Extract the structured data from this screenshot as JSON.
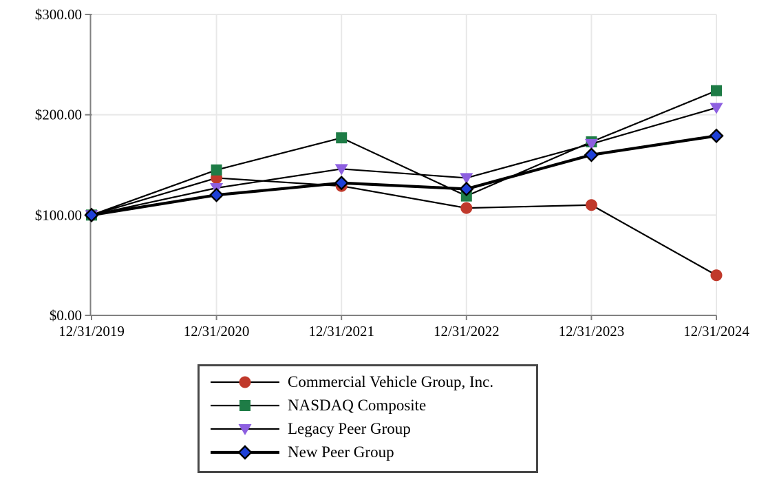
{
  "chart_data": {
    "type": "line",
    "title": "",
    "xlabel": "",
    "ylabel": "",
    "categories": [
      "12/31/2019",
      "12/31/2020",
      "12/31/2021",
      "12/31/2022",
      "12/31/2023",
      "12/31/2024"
    ],
    "series": [
      {
        "name": "Commercial Vehicle Group, Inc.",
        "marker": "circle",
        "marker_color": "#c0392b",
        "line_color": "#000000",
        "line_width": 2.2,
        "values": [
          100,
          137,
          129,
          107,
          110,
          40
        ]
      },
      {
        "name": "NASDAQ Composite",
        "marker": "square",
        "marker_color": "#1e7c46",
        "line_color": "#000000",
        "line_width": 2.2,
        "values": [
          100,
          145,
          177,
          119,
          173,
          224
        ]
      },
      {
        "name": "Legacy Peer Group",
        "marker": "triangle-down",
        "marker_color": "#8d5fe0",
        "line_color": "#000000",
        "line_width": 2.2,
        "values": [
          100,
          127,
          146,
          137,
          171,
          207
        ]
      },
      {
        "name": "New Peer Group",
        "marker": "diamond",
        "marker_color": "#1e40d8",
        "line_color": "#000000",
        "line_width": 4.2,
        "values": [
          100,
          120,
          132,
          126,
          160,
          179
        ]
      }
    ],
    "ylim": [
      0,
      300
    ],
    "yticks": [
      {
        "value": 0,
        "label": "$0.00"
      },
      {
        "value": 100,
        "label": "$100.00"
      },
      {
        "value": 200,
        "label": "$200.00"
      },
      {
        "value": 300,
        "label": "$300.00"
      }
    ],
    "grid": "both",
    "legend_position": "bottom"
  },
  "colors": {
    "background": "#ffffff",
    "axis": "#808080",
    "grid": "#e8e8e8",
    "legend_border": "#474747"
  }
}
